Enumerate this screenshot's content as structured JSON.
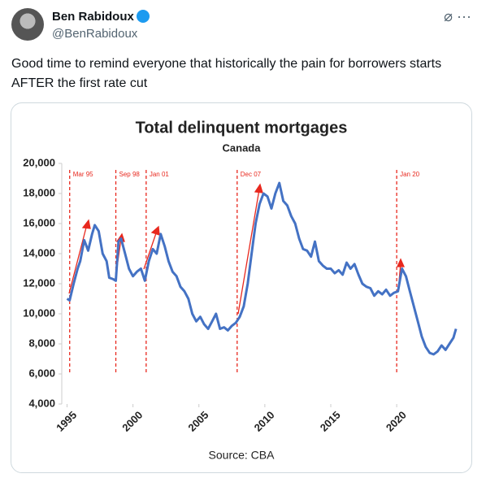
{
  "tweet": {
    "name": "Ben Rabidoux",
    "handle": "@BenRabidoux",
    "text": "Good time to remind everyone that historically the pain for borrowers starts AFTER the first rate cut"
  },
  "chart_data": {
    "type": "line",
    "title": "Total delinquent mortgages",
    "subtitle": "Canada",
    "source": "Source:  CBA",
    "x": [
      1995.0,
      1995.2,
      1995.5,
      1995.8,
      1996.0,
      1996.3,
      1996.6,
      1996.9,
      1997.1,
      1997.4,
      1997.7,
      1998.0,
      1998.2,
      1998.5,
      1998.7,
      1998.9,
      1999.1,
      1999.4,
      1999.7,
      2000.0,
      2000.3,
      2000.6,
      2000.9,
      2001.2,
      2001.5,
      2001.8,
      2002.1,
      2002.4,
      2002.7,
      2003.0,
      2003.3,
      2003.6,
      2003.9,
      2004.2,
      2004.5,
      2004.8,
      2005.1,
      2005.4,
      2005.7,
      2006.0,
      2006.3,
      2006.6,
      2006.9,
      2007.2,
      2007.5,
      2007.8,
      2008.1,
      2008.4,
      2008.7,
      2009.0,
      2009.3,
      2009.6,
      2009.9,
      2010.2,
      2010.5,
      2010.8,
      2011.1,
      2011.4,
      2011.7,
      2012.0,
      2012.3,
      2012.6,
      2012.9,
      2013.2,
      2013.5,
      2013.8,
      2014.1,
      2014.4,
      2014.7,
      2015.0,
      2015.3,
      2015.6,
      2015.9,
      2016.2,
      2016.5,
      2016.8,
      2017.1,
      2017.4,
      2017.7,
      2018.0,
      2018.3,
      2018.6,
      2018.9,
      2019.2,
      2019.5,
      2019.8,
      2020.1,
      2020.4,
      2020.7,
      2021.0,
      2021.3,
      2021.6,
      2021.9,
      2022.2,
      2022.5,
      2022.8,
      2023.1,
      2023.4,
      2023.7,
      2024.0,
      2024.3,
      2024.5
    ],
    "series": [
      {
        "name": "Total delinquent mortgages",
        "color": "#4472c4",
        "values": [
          11000,
          10900,
          12000,
          13000,
          13500,
          14900,
          14200,
          15300,
          15900,
          15500,
          14000,
          13500,
          12400,
          12300,
          12200,
          14800,
          15000,
          14000,
          13000,
          12500,
          12800,
          13000,
          12200,
          13500,
          14300,
          14000,
          15300,
          14500,
          13500,
          12800,
          12500,
          11800,
          11500,
          11000,
          10000,
          9500,
          9800,
          9300,
          9000,
          9500,
          10000,
          9000,
          9100,
          8900,
          9200,
          9400,
          9800,
          10500,
          12000,
          14000,
          16000,
          17300,
          18000,
          17800,
          17000,
          18000,
          18700,
          17500,
          17200,
          16500,
          16000,
          15000,
          14300,
          14200,
          13800,
          14800,
          13500,
          13200,
          13000,
          13000,
          12700,
          12900,
          12600,
          13400,
          13000,
          13300,
          12600,
          12000,
          11800,
          11700,
          11200,
          11500,
          11300,
          11600,
          11200,
          11400,
          11500,
          13000,
          12500,
          11500,
          10500,
          9500,
          8500,
          7800,
          7400,
          7300,
          7500,
          7900,
          7600,
          8000,
          8400,
          9000
        ]
      }
    ],
    "xlim": [
      1994.6,
      2024.8
    ],
    "xticks": [
      1995,
      2000,
      2005,
      2010,
      2015,
      2020
    ],
    "ylim": [
      4000,
      20000
    ],
    "yticks": [
      {
        "value": 4000,
        "label": "4,000"
      },
      {
        "value": 6000,
        "label": "6,000"
      },
      {
        "value": 8000,
        "label": "8,000"
      },
      {
        "value": 10000,
        "label": "10,000"
      },
      {
        "value": 12000,
        "label": "12,000"
      },
      {
        "value": 14000,
        "label": "14,000"
      },
      {
        "value": 16000,
        "label": "16,000"
      },
      {
        "value": 18000,
        "label": "18,000"
      },
      {
        "value": 20000,
        "label": "20,000"
      }
    ],
    "grid": false,
    "annotations": [
      {
        "x": 1995.2,
        "label": "Mar 95"
      },
      {
        "x": 1998.7,
        "label": "Sep 98"
      },
      {
        "x": 2001.0,
        "label": "Jan 01"
      },
      {
        "x": 2007.9,
        "label": "Dec 07"
      },
      {
        "x": 2020.0,
        "label": "Jan 20"
      }
    ],
    "annotation_color": "#e8281e"
  }
}
